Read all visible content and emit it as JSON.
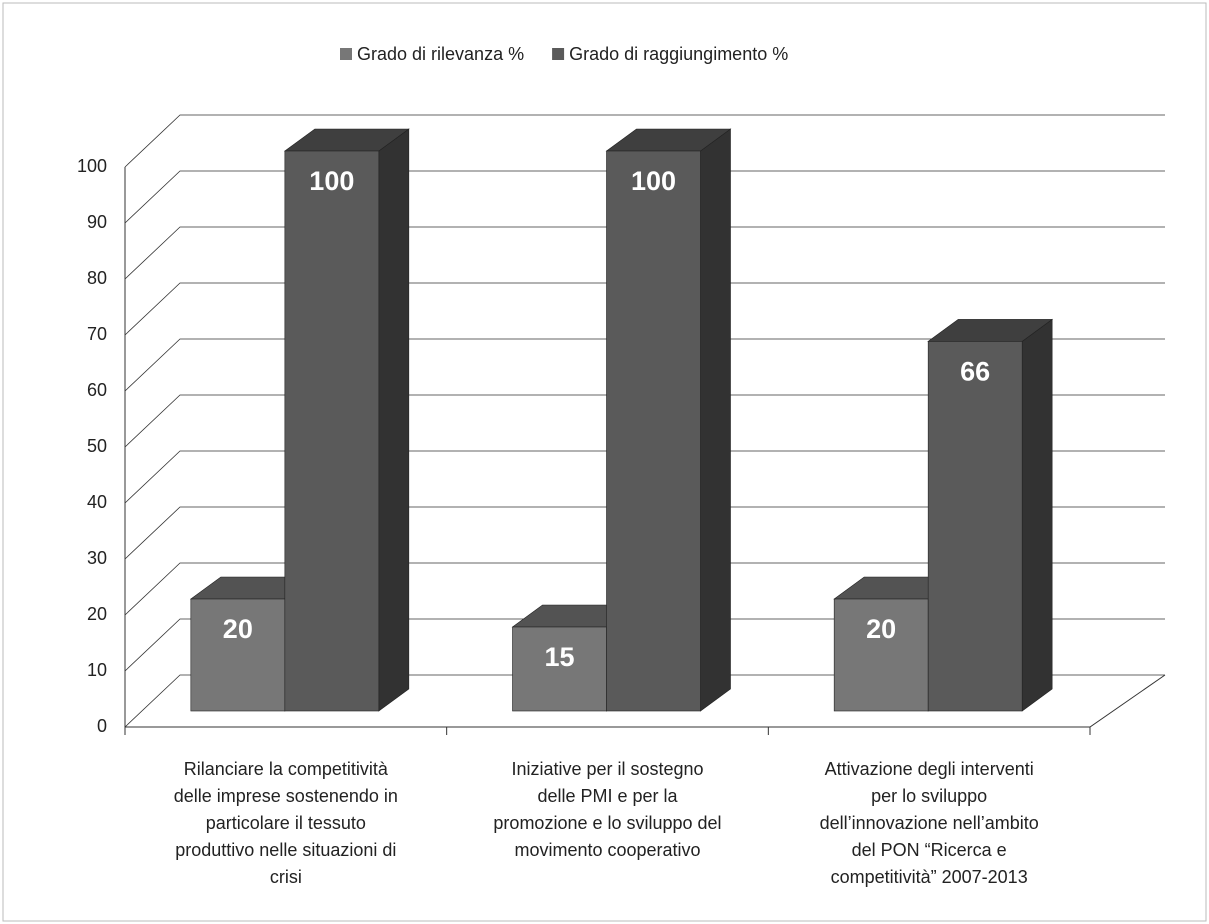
{
  "chart_data": {
    "type": "bar3d",
    "categories": [
      "Rilanciare la competitività\ndelle imprese sostenendo in\nparticolare il tessuto\nproduttivo nelle situazioni di\ncrisi",
      "Iniziative per il sostegno\ndelle PMI e per la\npromozione e lo sviluppo del\nmovimento cooperativo",
      "Attivazione degli interventi\nper lo sviluppo\ndell’innovazione nell’ambito\ndel PON “Ricerca e\ncompetitività” 2007-2013"
    ],
    "series": [
      {
        "name": "Grado di rilevanza %",
        "color": "#777777",
        "values": [
          20,
          15,
          20
        ]
      },
      {
        "name": "Grado di raggiungimento %",
        "color": "#5a5a5a",
        "values": [
          100,
          100,
          66
        ]
      }
    ],
    "ylim": [
      0,
      100
    ],
    "yticks": [
      0,
      10,
      20,
      30,
      40,
      50,
      60,
      70,
      80,
      90,
      100
    ],
    "grid": true,
    "legend": "top"
  }
}
